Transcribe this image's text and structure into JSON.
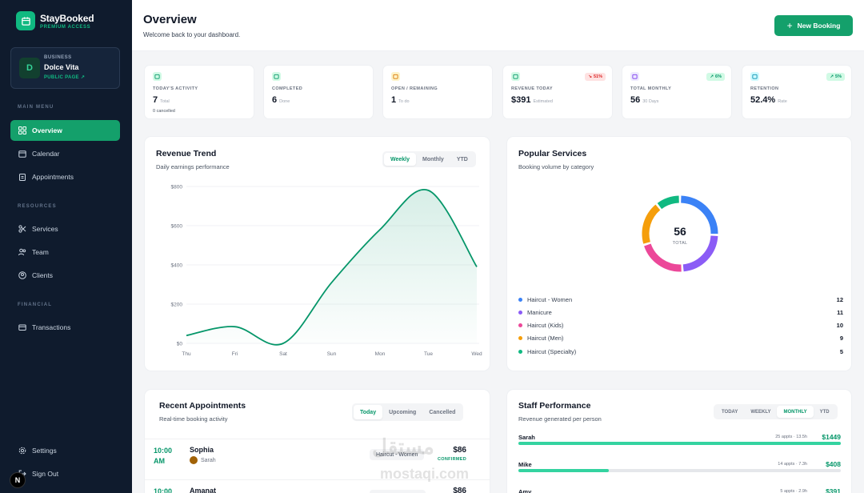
{
  "brand": {
    "name": "StayBooked",
    "subtitle": "PREMIUM ACCESS"
  },
  "business": {
    "label": "BUSINESS",
    "name": "Dolce Vita",
    "initial": "D",
    "link": "PUBLIC PAGE"
  },
  "sidebar": {
    "main_label": "MAIN MENU",
    "main": [
      {
        "label": "Overview",
        "icon": "grid-icon"
      },
      {
        "label": "Calendar",
        "icon": "calendar-icon"
      },
      {
        "label": "Appointments",
        "icon": "clipboard-icon"
      }
    ],
    "resources_label": "RESOURCES",
    "resources": [
      {
        "label": "Services",
        "icon": "scissors-icon"
      },
      {
        "label": "Team",
        "icon": "users-icon"
      },
      {
        "label": "Clients",
        "icon": "user-circle-icon"
      }
    ],
    "financial_label": "FINANCIAL",
    "financial": [
      {
        "label": "Transactions",
        "icon": "wallet-icon"
      }
    ],
    "settings": "Settings",
    "signout": "Sign Out",
    "n_badge": "N"
  },
  "header": {
    "title": "Overview",
    "subtitle": "Welcome back to your dashboard.",
    "new_button": "New Booking"
  },
  "stats": [
    {
      "label": "TODAY'S ACTIVITY",
      "value": "7",
      "unit": "Total",
      "note": "0 cancelled",
      "trend": "",
      "icon_color": "#059669",
      "icon_bg": "#d1fae5"
    },
    {
      "label": "COMPLETED",
      "value": "6",
      "unit": "Done",
      "note": "",
      "trend": "",
      "icon_color": "#059669",
      "icon_bg": "#d1fae5"
    },
    {
      "label": "OPEN / REMAINING",
      "value": "1",
      "unit": "To do",
      "note": "",
      "trend": "",
      "icon_color": "#d97706",
      "icon_bg": "#fef3c7"
    },
    {
      "label": "REVENUE TODAY",
      "value": "$391",
      "unit": "Estimated",
      "note": "",
      "trend": "51%",
      "trend_dir": "down",
      "icon_color": "#059669",
      "icon_bg": "#d1fae5"
    },
    {
      "label": "TOTAL MONTHLY",
      "value": "56",
      "unit": "30 Days",
      "note": "",
      "trend": "6%",
      "trend_dir": "up",
      "icon_color": "#7c3aed",
      "icon_bg": "#ede9fe"
    },
    {
      "label": "RETENTION",
      "value": "52.4%",
      "unit": "Rate",
      "note": "",
      "trend": "5%",
      "trend_dir": "up",
      "icon_color": "#0891b2",
      "icon_bg": "#cffafe"
    }
  ],
  "revenue": {
    "title": "Revenue Trend",
    "subtitle": "Daily earnings performance",
    "tabs": [
      "Weekly",
      "Monthly",
      "YTD"
    ],
    "active_tab": "Weekly"
  },
  "chart_data": {
    "type": "area",
    "categories": [
      "Thu",
      "Fri",
      "Sat",
      "Sun",
      "Mon",
      "Tue",
      "Wed"
    ],
    "values": [
      40,
      85,
      0,
      310,
      580,
      780,
      390
    ],
    "yticks": [
      "$0",
      "$200",
      "$400",
      "$600",
      "$800"
    ],
    "ylim": [
      0,
      800
    ],
    "color": "#059669"
  },
  "services": {
    "title": "Popular Services",
    "subtitle": "Booking volume by category",
    "total": "56",
    "total_label": "TOTAL",
    "items": [
      {
        "name": "Haircut - Women",
        "count": 12,
        "color": "#3b82f6"
      },
      {
        "name": "Manicure",
        "count": 11,
        "color": "#8b5cf6"
      },
      {
        "name": "Haircut (Kids)",
        "count": 10,
        "color": "#ec4899"
      },
      {
        "name": "Haircut (Men)",
        "count": 9,
        "color": "#f59e0b"
      },
      {
        "name": "Haircut (Specialty)",
        "count": 5,
        "color": "#10b981"
      }
    ]
  },
  "appointments": {
    "title": "Recent Appointments",
    "subtitle": "Real-time booking activity",
    "tabs": [
      "Today",
      "Upcoming",
      "Cancelled"
    ],
    "active_tab": "Today",
    "rows": [
      {
        "time": "10:00 AM",
        "client": "Sophia",
        "staff": "Sarah",
        "service": "Haircut - Women",
        "price": "$86",
        "status": "CONFIRMED"
      },
      {
        "time": "10:00",
        "client": "Amanat",
        "staff": "",
        "service": "",
        "price": "$86",
        "status": ""
      }
    ]
  },
  "staff": {
    "title": "Staff Performance",
    "subtitle": "Revenue generated per person",
    "tabs": [
      "TODAY",
      "WEEKLY",
      "MONTHLY",
      "YTD"
    ],
    "active_tab": "MONTHLY",
    "rows": [
      {
        "name": "Sarah",
        "meta": "25 appts · 13.5h",
        "amount": "$1449",
        "fill": 1.0
      },
      {
        "name": "Mike",
        "meta": "14 appts · 7.3h",
        "amount": "$408",
        "fill": 0.28
      },
      {
        "name": "Amy",
        "meta": "5 appts · 2.9h",
        "amount": "$391",
        "fill": 0.27
      }
    ]
  },
  "watermark": {
    "line1": "مستقل",
    "line2": "mostaqi.com"
  }
}
